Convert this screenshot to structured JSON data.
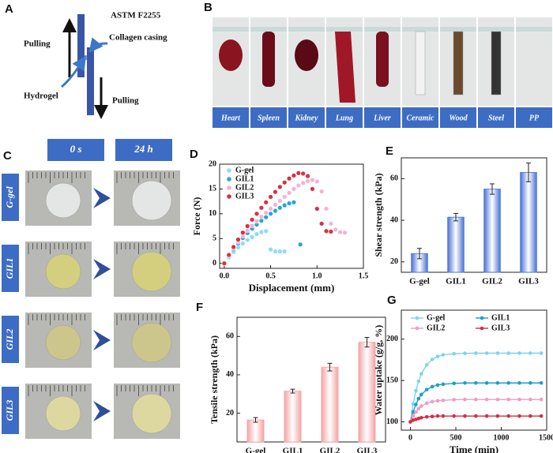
{
  "panel_a": {
    "label": "A",
    "title": "ASTM F2255",
    "pulling_top": "Pulling",
    "casing": "Collagen casing",
    "hydrogel": "Hydrogel",
    "pulling_bottom": "Pulling"
  },
  "panel_b": {
    "label": "B",
    "samples": [
      "Heart",
      "Spleen",
      "Kidney",
      "Lung",
      "Liver",
      "Ceramic",
      "Wood",
      "Steel",
      "PP"
    ]
  },
  "panel_c": {
    "label": "C",
    "times": [
      "0 s",
      "24 h"
    ],
    "rows": [
      "G-gel",
      "GIL1",
      "GIL2",
      "GIL3"
    ]
  },
  "chart_data": [
    {
      "panel": "D",
      "type": "scatter",
      "x_label": "Displacement (mm)",
      "y_label": "Force (N)",
      "xlim": [
        -0.05,
        1.5
      ],
      "xticks": [
        {
          "value": 0,
          "label": "0.0"
        },
        0.5,
        {
          "value": 1,
          "label": "1.0"
        },
        1.5
      ],
      "ylim": [
        -1,
        20
      ],
      "yticks": [
        0,
        5,
        10,
        15,
        20
      ],
      "legend": "top-left",
      "series": [
        {
          "name": "G-gel",
          "color": "#8fdcf2",
          "x": [
            0,
            0.05,
            0.1,
            0.15,
            0.2,
            0.25,
            0.3,
            0.35,
            0.4,
            0.45,
            0.5,
            0.55,
            0.6,
            0.65
          ],
          "values": [
            0,
            1.2,
            2.3,
            3.2,
            4.0,
            4.7,
            5.3,
            5.9,
            6.3,
            6.5,
            2.8,
            2.4,
            2.4,
            2.4
          ]
        },
        {
          "name": "GIL1",
          "color": "#23a9d3",
          "x": [
            0,
            0.05,
            0.1,
            0.15,
            0.2,
            0.25,
            0.3,
            0.35,
            0.4,
            0.45,
            0.5,
            0.55,
            0.6,
            0.65,
            0.7,
            0.75,
            0.82
          ],
          "values": [
            0,
            1.5,
            2.8,
            4.0,
            5.1,
            6.1,
            7.0,
            7.8,
            8.6,
            9.3,
            10.0,
            10.6,
            11.2,
            11.7,
            12.1,
            12.3,
            3.8
          ]
        },
        {
          "name": "GIL2",
          "color": "#f3b3d3",
          "x": [
            0,
            0.05,
            0.1,
            0.15,
            0.2,
            0.25,
            0.3,
            0.35,
            0.4,
            0.45,
            0.5,
            0.55,
            0.6,
            0.65,
            0.7,
            0.75,
            0.8,
            0.85,
            0.9,
            0.95,
            1.0,
            1.05,
            1.1,
            1.15,
            1.2,
            1.25,
            1.3
          ],
          "values": [
            0,
            1.6,
            3.0,
            4.3,
            5.5,
            6.6,
            7.6,
            8.5,
            9.4,
            10.2,
            11.0,
            11.8,
            12.6,
            13.4,
            14.2,
            15.0,
            15.7,
            16.2,
            16.6,
            16.8,
            16.5,
            14.5,
            11.0,
            8.0,
            6.8,
            6.3,
            6.2
          ]
        },
        {
          "name": "GIL3",
          "color": "#d9303f",
          "x": [
            0,
            0.05,
            0.1,
            0.15,
            0.2,
            0.25,
            0.3,
            0.35,
            0.4,
            0.45,
            0.5,
            0.55,
            0.6,
            0.65,
            0.7,
            0.75,
            0.8,
            0.85,
            0.9,
            0.95,
            1.0,
            1.05,
            1.1,
            1.15
          ],
          "values": [
            0,
            1.7,
            3.3,
            4.8,
            6.2,
            7.5,
            8.8,
            10.0,
            11.2,
            12.3,
            13.4,
            14.4,
            15.4,
            16.3,
            17.1,
            17.7,
            18.2,
            18.1,
            17.6,
            15.0,
            11.0,
            8.0,
            6.5,
            6.4
          ]
        }
      ]
    },
    {
      "panel": "E",
      "type": "bar",
      "y_label": "Shear strength (kPa)",
      "color": "#4a72d6",
      "categories": [
        "G-gel",
        "GIL1",
        "GIL2",
        "GIL3"
      ],
      "values": [
        24,
        41.5,
        55,
        63
      ],
      "errors": [
        2.5,
        1.8,
        2.5,
        4.5
      ],
      "ylim": [
        15,
        70
      ],
      "yticks": [
        20,
        40,
        60
      ]
    },
    {
      "panel": "F",
      "type": "bar",
      "y_label": "Tensile strength (kPa)",
      "color": "#f4a3a3",
      "categories": [
        "G-gel",
        "GIL1",
        "GIL2",
        "GIL3"
      ],
      "values": [
        16.5,
        31.5,
        44,
        57
      ],
      "errors": [
        1.2,
        1,
        2,
        2.5
      ],
      "ylim": [
        5,
        70
      ],
      "yticks": [
        20,
        40,
        60
      ]
    },
    {
      "panel": "G",
      "type": "line",
      "x_label": "Time (min)",
      "y_label": "Water uptake (g/g, %)",
      "xlim": [
        -100,
        1500
      ],
      "xticks": [
        0,
        500,
        1000,
        1500
      ],
      "ylim": [
        90,
        235
      ],
      "yticks": [
        100,
        150,
        200
      ],
      "legend": "top",
      "x": [
        0,
        30,
        60,
        90,
        120,
        180,
        240,
        300,
        360,
        480,
        600,
        720,
        840,
        960,
        1080,
        1200,
        1320,
        1440
      ],
      "series": [
        {
          "name": "G-gel",
          "color": "#7fd3ef",
          "values": [
            100,
            121.5,
            137.5,
            149,
            158,
            169,
            175.5,
            179,
            181,
            182.3,
            182.8,
            183,
            183,
            183,
            183,
            183,
            183,
            183
          ]
        },
        {
          "name": "GIL1",
          "color": "#1a9fc8",
          "values": [
            100,
            112,
            121,
            128,
            133,
            139,
            142.5,
            144.5,
            145.5,
            146.5,
            147,
            147,
            147,
            147,
            147,
            147,
            147,
            147
          ]
        },
        {
          "name": "GIL2",
          "color": "#ee9cc6",
          "values": [
            100,
            107,
            112,
            116,
            119,
            122.5,
            124.5,
            125.5,
            126,
            126.8,
            127,
            127,
            127,
            127,
            127,
            127,
            127,
            127
          ]
        },
        {
          "name": "GIL3",
          "color": "#d42e46",
          "values": [
            100,
            102,
            103,
            104,
            105,
            106,
            106.5,
            107,
            107,
            107,
            107,
            107,
            107,
            107,
            107,
            107,
            107,
            107
          ]
        }
      ]
    }
  ]
}
